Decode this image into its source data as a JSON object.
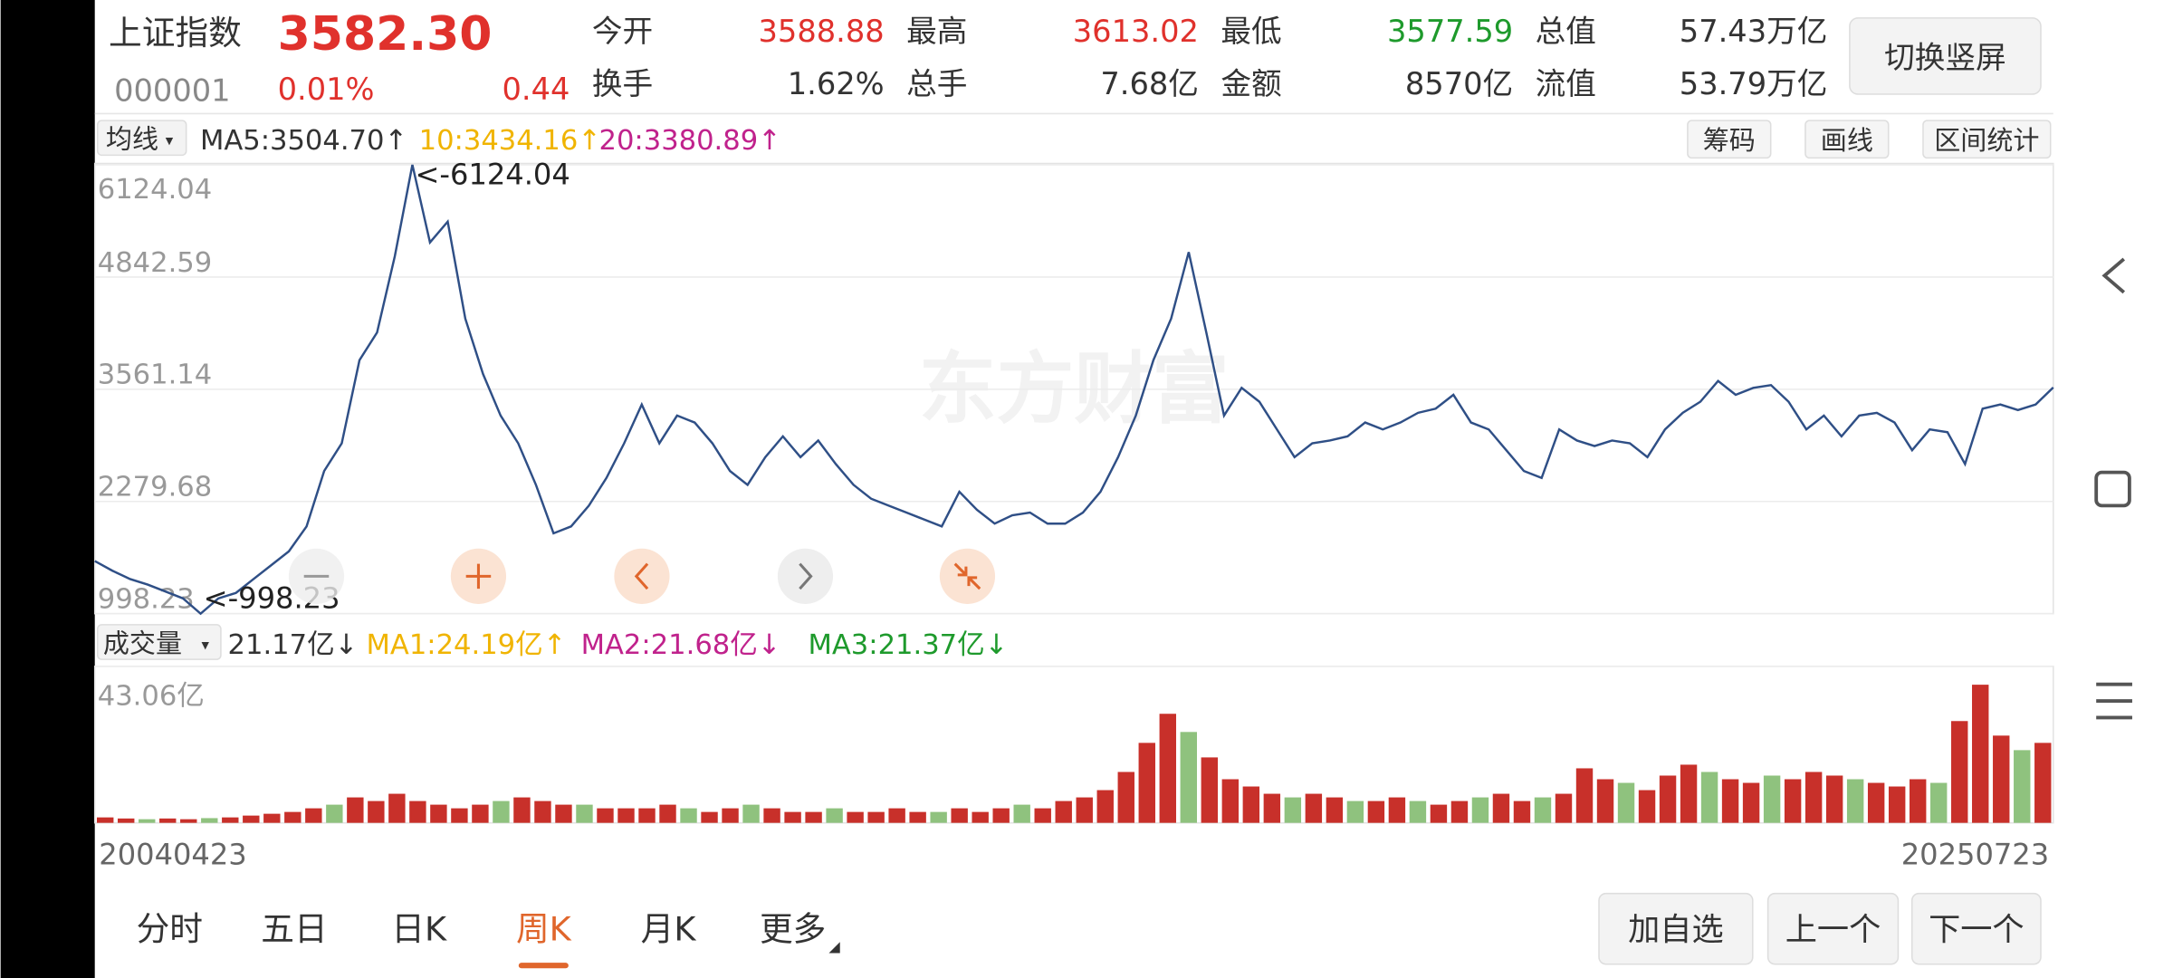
{
  "header": {
    "name": "上证指数",
    "price": "3582.30",
    "code": "000001",
    "change_pct": "0.01%",
    "change": "0.44",
    "stats": [
      {
        "label": "今开",
        "value": "3588.88"
      },
      {
        "label": "最高",
        "value": "3613.02"
      },
      {
        "label": "最低",
        "value": "3577.59"
      },
      {
        "label": "总值",
        "value": "57.43万亿"
      },
      {
        "label": "换手",
        "value": "1.62%"
      },
      {
        "label": "总手",
        "value": "7.68亿"
      },
      {
        "label": "金额",
        "value": "8570亿"
      },
      {
        "label": "流值",
        "value": "53.79万亿"
      }
    ],
    "switch_button": "切换竖屏"
  },
  "toolbar": {
    "ma_selector": "均线",
    "ma5": "MA5:3504.70↑",
    "ma10": "10:3434.16↑",
    "ma20": "20:3380.89↑",
    "buttons": [
      "筹码",
      "画线",
      "区间统计"
    ]
  },
  "volume_toolbar": {
    "selector": "成交量",
    "current": "21.17亿↓",
    "ma1": "MA1:24.19亿↑",
    "ma2": "MA2:21.68亿↓",
    "ma3": "MA3:21.37亿↓"
  },
  "chart_data": [
    {
      "type": "line",
      "color": "#2f4f86",
      "grid": true,
      "watermark": "东方财富",
      "annotations": [
        "<-6124.04",
        "<-998.23"
      ],
      "x_labels": [
        "20040423",
        "20250723"
      ],
      "ylim": [
        998.23,
        6124.04
      ],
      "yticks": [
        998.23,
        2279.68,
        3561.14,
        4842.59,
        6124.04
      ],
      "values": [
        1599,
        1489,
        1394,
        1330,
        1251,
        1172,
        998.23,
        1172,
        1236,
        1394,
        1552,
        1710,
        1995,
        2628,
        2944,
        3893,
        4210,
        5080,
        6124.04,
        5238,
        5475,
        4368,
        3735,
        3261,
        2944,
        2469,
        1916,
        1995,
        2232,
        2548,
        2944,
        3387,
        2944,
        3261,
        3181,
        2944,
        2628,
        2469,
        2786,
        3023,
        2786,
        2976,
        2707,
        2469,
        2311,
        2232,
        2153,
        2074,
        1995,
        2390,
        2185,
        2026,
        2121,
        2153,
        2026,
        2026,
        2153,
        2390,
        2786,
        3261,
        3893,
        4368,
        5127,
        4210,
        3261,
        3577,
        3418,
        3102,
        2786,
        2944,
        2976,
        3023,
        3181,
        3102,
        3181,
        3292,
        3339,
        3498,
        3181,
        3102,
        2865,
        2628,
        2548,
        3102,
        2976,
        2912,
        2976,
        2944,
        2786,
        3102,
        3292,
        3418,
        3656,
        3498,
        3577,
        3608,
        3418,
        3102,
        3261,
        3023,
        3261,
        3292,
        3181,
        2865,
        3102,
        3070,
        2707,
        3339,
        3387,
        3324,
        3387,
        3582
      ]
    },
    {
      "type": "bar",
      "color": "#c8302a",
      "down_color": "#8fc27e",
      "down_bars": [
        2,
        5,
        11,
        19,
        23,
        28,
        31,
        35,
        40,
        44,
        52,
        57,
        60,
        63,
        66,
        69,
        73,
        77,
        80,
        84,
        88,
        92
      ],
      "ylim": [
        0,
        43.06
      ],
      "yticks": [
        {
          "value": 43.06,
          "label": "43.06亿"
        }
      ],
      "values": [
        1.5,
        1.2,
        1,
        1.2,
        1,
        1.3,
        1.5,
        2,
        2.5,
        3,
        4,
        5,
        7,
        6,
        8,
        6,
        5,
        4,
        5,
        6,
        7,
        6,
        5,
        5,
        4,
        4,
        4,
        5,
        4,
        3,
        4,
        5,
        4,
        3,
        3,
        4,
        3,
        3,
        4,
        3,
        3,
        4,
        3,
        4,
        5,
        4,
        6,
        7,
        9,
        14,
        22,
        30,
        25,
        18,
        12,
        10,
        8,
        7,
        8,
        7,
        6,
        6,
        7,
        6,
        5,
        6,
        7,
        8,
        6,
        7,
        8,
        15,
        12,
        11,
        9,
        13,
        16,
        14,
        12,
        11,
        13,
        12,
        14,
        13,
        12,
        11,
        10,
        12,
        11,
        28,
        38,
        24,
        20,
        22
      ]
    }
  ],
  "tabs": {
    "items": [
      "分时",
      "五日",
      "日K",
      "周K",
      "月K",
      "更多"
    ],
    "active": 3
  },
  "buttons": [
    "加自选",
    "上一个",
    "下一个"
  ]
}
